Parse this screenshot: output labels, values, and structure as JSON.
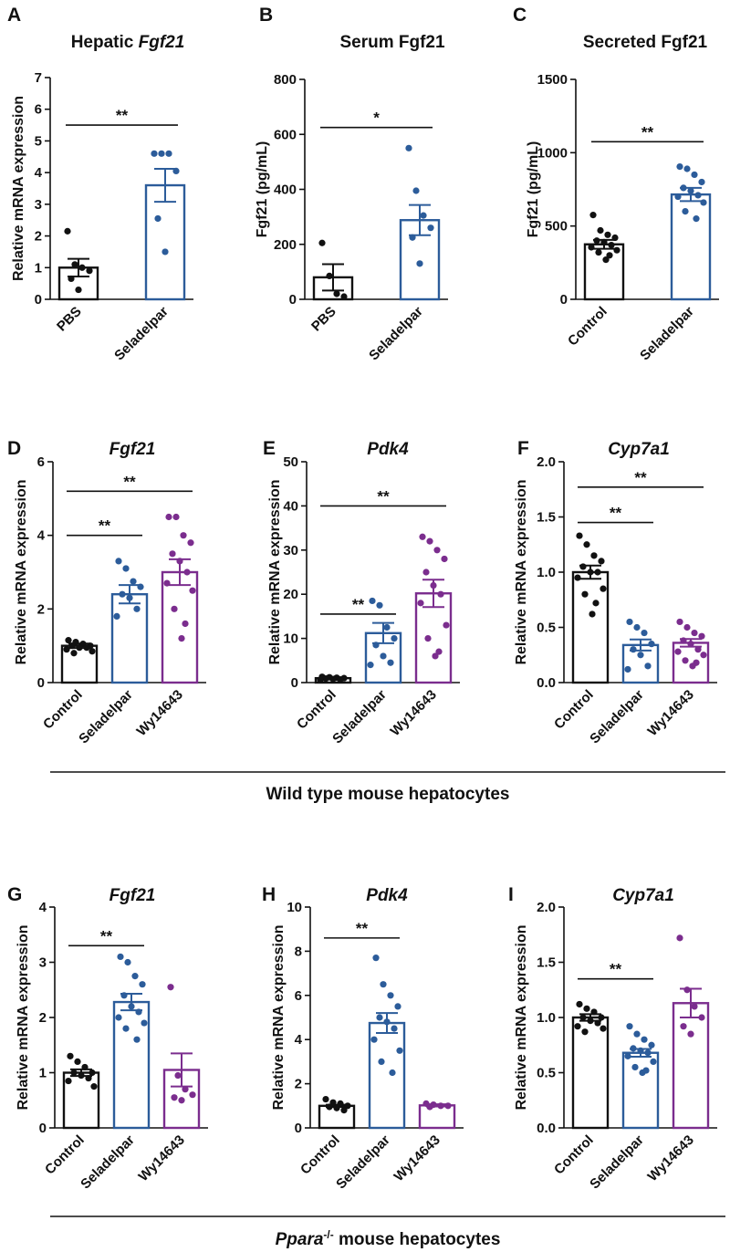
{
  "colors": {
    "control": "#111111",
    "seladelpar": "#2c5c9a",
    "wy14643": "#7b2d8e",
    "axis": "#111111"
  },
  "groups": [
    {
      "label": "Wild type mouse hepatocytes",
      "label_italic": "",
      "label_sup": ""
    },
    {
      "label": " mouse hepatocytes",
      "label_italic": "Ppara",
      "label_sup": "-/-"
    }
  ],
  "chart_data": [
    {
      "type": "bar",
      "letter": "A",
      "title": "Hepatic ",
      "title_italic": "Fgf21",
      "ylabel": "Relative mRNA expression",
      "ylim": [
        0,
        7
      ],
      "yticks": [
        "0",
        "1",
        "2",
        "3",
        "4",
        "5",
        "6",
        "7"
      ],
      "categories": [
        "PBS",
        "Seladelpar"
      ],
      "colorKeys": [
        "control",
        "seladelpar"
      ],
      "values": [
        1.0,
        3.6
      ],
      "sem": [
        0.28,
        0.52
      ],
      "points": [
        [
          2.15,
          1.1,
          1.0,
          0.9,
          0.65,
          0.3
        ],
        [
          4.6,
          4.6,
          4.6,
          4.05,
          2.55,
          1.5
        ]
      ],
      "significance": [
        {
          "from": 0,
          "to": 1,
          "label": "**",
          "y": 5.5
        }
      ]
    },
    {
      "type": "bar",
      "letter": "B",
      "title": "Serum Fgf21",
      "title_italic": "",
      "ylabel": "Fgf21 (pg/mL)",
      "ylim": [
        0,
        800
      ],
      "yticks": [
        "0",
        "200",
        "400",
        "600",
        "800"
      ],
      "categories": [
        "PBS",
        "Seladelpar"
      ],
      "colorKeys": [
        "control",
        "seladelpar"
      ],
      "values": [
        80,
        288
      ],
      "sem": [
        48,
        55
      ],
      "points": [
        [
          205,
          85,
          20,
          10
        ],
        [
          550,
          395,
          305,
          260,
          225,
          130
        ]
      ],
      "significance": [
        {
          "from": 0,
          "to": 1,
          "label": "*",
          "y": 625
        }
      ]
    },
    {
      "type": "bar",
      "letter": "C",
      "title": "Secreted Fgf21",
      "title_italic": "",
      "ylabel": "Fgf21 (pg/mL)",
      "ylim": [
        0,
        1500
      ],
      "yticks": [
        "0",
        "500",
        "1000",
        "1500"
      ],
      "categories": [
        "Control",
        "Seladelpar"
      ],
      "colorKeys": [
        "control",
        "seladelpar"
      ],
      "values": [
        375,
        715
      ],
      "sem": [
        30,
        45
      ],
      "points": [
        [
          575,
          470,
          440,
          420,
          400,
          390,
          370,
          355,
          335,
          320,
          300,
          270
        ],
        [
          905,
          890,
          850,
          800,
          760,
          740,
          710,
          700,
          660,
          600,
          550
        ]
      ],
      "significance": [
        {
          "from": 0,
          "to": 1,
          "label": "**",
          "y": 1075
        }
      ]
    },
    {
      "type": "bar",
      "letter": "D",
      "title": "",
      "title_italic": "Fgf21",
      "ylabel": "Relative mRNA expression",
      "ylim": [
        0,
        6
      ],
      "yticks": [
        "0",
        "2",
        "4",
        "6"
      ],
      "categories": [
        "Control",
        "Seladelpar",
        "Wy14643"
      ],
      "colorKeys": [
        "control",
        "seladelpar",
        "wy14643"
      ],
      "values": [
        1.0,
        2.4,
        3.0
      ],
      "sem": [
        0.06,
        0.25,
        0.35
      ],
      "points": [
        [
          1.15,
          1.1,
          1.05,
          1.0,
          1.0,
          0.95,
          0.95,
          0.9,
          0.85,
          0.8
        ],
        [
          3.3,
          3.1,
          2.75,
          2.6,
          2.4,
          2.3,
          2.0,
          1.8
        ],
        [
          4.5,
          4.5,
          4.0,
          3.8,
          3.5,
          3.3,
          3.0,
          2.7,
          2.5,
          2.0,
          1.6,
          1.2
        ]
      ],
      "significance": [
        {
          "from": 0,
          "to": 1,
          "label": "**",
          "y": 4.0
        },
        {
          "from": 0,
          "to": 2,
          "label": "**",
          "y": 5.2
        }
      ]
    },
    {
      "type": "bar",
      "letter": "E",
      "title": "",
      "title_italic": "Pdk4",
      "ylabel": "Relative mRNA expression",
      "ylim": [
        0,
        50
      ],
      "yticks": [
        "0",
        "10",
        "20",
        "30",
        "40",
        "50"
      ],
      "categories": [
        "Control",
        "Seladelpar",
        "Wy14643"
      ],
      "colorKeys": [
        "control",
        "seladelpar",
        "wy14643"
      ],
      "values": [
        1.0,
        11.2,
        20.2
      ],
      "sem": [
        0.2,
        2.3,
        3.1
      ],
      "points": [
        [
          1.3,
          1.2,
          1.1,
          1.0,
          0.9,
          0.8,
          0.7,
          0.6
        ],
        [
          18.5,
          17.5,
          12.5,
          10.0,
          8.5,
          6.0,
          4.5,
          4.0
        ],
        [
          33.0,
          32.0,
          30.0,
          28.0,
          25.0,
          22.0,
          20.0,
          18.0,
          13.0,
          10.0,
          7.0,
          6.0
        ]
      ],
      "significance": [
        {
          "from": 0,
          "to": 1,
          "label": "**",
          "y": 15.5
        },
        {
          "from": 0,
          "to": 2,
          "label": "**",
          "y": 40.0
        }
      ]
    },
    {
      "type": "bar",
      "letter": "F",
      "title": "",
      "title_italic": "Cyp7a1",
      "ylabel": "Relative mRNA expression",
      "ylim": [
        0,
        2.0
      ],
      "yticks": [
        "0.0",
        "0.5",
        "1.0",
        "1.5",
        "2.0"
      ],
      "categories": [
        "Control",
        "Seladelpar",
        "Wy14643"
      ],
      "colorKeys": [
        "control",
        "seladelpar",
        "wy14643"
      ],
      "values": [
        1.0,
        0.34,
        0.36
      ],
      "sem": [
        0.06,
        0.05,
        0.035
      ],
      "points": [
        [
          1.33,
          1.25,
          1.15,
          1.1,
          1.05,
          1.0,
          1.0,
          0.95,
          0.85,
          0.8,
          0.72,
          0.62
        ],
        [
          0.55,
          0.5,
          0.45,
          0.35,
          0.3,
          0.25,
          0.15,
          0.12
        ],
        [
          0.55,
          0.5,
          0.45,
          0.42,
          0.38,
          0.35,
          0.3,
          0.28,
          0.25,
          0.2,
          0.18,
          0.15
        ]
      ],
      "significance": [
        {
          "from": 0,
          "to": 1,
          "label": "**",
          "y": 1.45
        },
        {
          "from": 0,
          "to": 2,
          "label": "**",
          "y": 1.77
        }
      ]
    },
    {
      "type": "bar",
      "letter": "G",
      "title": "",
      "title_italic": "Fgf21",
      "ylabel": "Relative mRNA expression",
      "ylim": [
        0,
        4
      ],
      "yticks": [
        "0",
        "1",
        "2",
        "3",
        "4"
      ],
      "categories": [
        "Control",
        "Seladelpar",
        "Wy14643"
      ],
      "colorKeys": [
        "control",
        "seladelpar",
        "wy14643"
      ],
      "values": [
        1.0,
        2.28,
        1.05
      ],
      "sem": [
        0.06,
        0.15,
        0.3
      ],
      "points": [
        [
          1.3,
          1.2,
          1.1,
          1.0,
          1.0,
          0.95,
          0.9,
          0.85,
          0.75
        ],
        [
          3.1,
          3.0,
          2.75,
          2.6,
          2.4,
          2.2,
          2.1,
          2.0,
          1.9,
          1.8,
          1.6
        ],
        [
          2.55,
          0.95,
          0.7,
          0.6,
          0.55,
          0.5
        ]
      ],
      "significance": [
        {
          "from": 0,
          "to": 1,
          "label": "**",
          "y": 3.3
        }
      ]
    },
    {
      "type": "bar",
      "letter": "H",
      "title": "",
      "title_italic": "Pdk4",
      "ylabel": "Relative mRNA expression",
      "ylim": [
        0,
        10
      ],
      "yticks": [
        "0",
        "2",
        "4",
        "6",
        "8",
        "10"
      ],
      "categories": [
        "Control",
        "Seladelpar",
        "Wy14643"
      ],
      "colorKeys": [
        "control",
        "seladelpar",
        "wy14643"
      ],
      "values": [
        1.0,
        4.75,
        1.02
      ],
      "sem": [
        0.05,
        0.45,
        0.05
      ],
      "points": [
        [
          1.3,
          1.15,
          1.1,
          1.0,
          0.95,
          0.9,
          0.8
        ],
        [
          7.7,
          6.5,
          6.0,
          5.5,
          5.0,
          4.8,
          4.5,
          4.0,
          3.5,
          3.0,
          2.5
        ],
        [
          1.1,
          1.05,
          1.0,
          1.0,
          0.95
        ]
      ],
      "significance": [
        {
          "from": 0,
          "to": 1,
          "label": "**",
          "y": 8.6
        }
      ]
    },
    {
      "type": "bar",
      "letter": "I",
      "title": "",
      "title_italic": "Cyp7a1",
      "ylabel": "Relative mRNA expression",
      "ylim": [
        0,
        2.0
      ],
      "yticks": [
        "0.0",
        "0.5",
        "1.0",
        "1.5",
        "2.0"
      ],
      "categories": [
        "Control",
        "Seladelpar",
        "Wy14643"
      ],
      "colorKeys": [
        "control",
        "seladelpar",
        "wy14643"
      ],
      "values": [
        1.0,
        0.68,
        1.13
      ],
      "sem": [
        0.03,
        0.035,
        0.13
      ],
      "points": [
        [
          1.12,
          1.08,
          1.05,
          1.0,
          1.0,
          0.97,
          0.95,
          0.92,
          0.9,
          0.87
        ],
        [
          0.92,
          0.85,
          0.8,
          0.75,
          0.72,
          0.7,
          0.68,
          0.65,
          0.6,
          0.55,
          0.52,
          0.5
        ],
        [
          1.72,
          1.25,
          1.1,
          1.0,
          0.92,
          0.85
        ]
      ],
      "significance": [
        {
          "from": 0,
          "to": 1,
          "label": "**",
          "y": 1.35
        }
      ]
    }
  ]
}
